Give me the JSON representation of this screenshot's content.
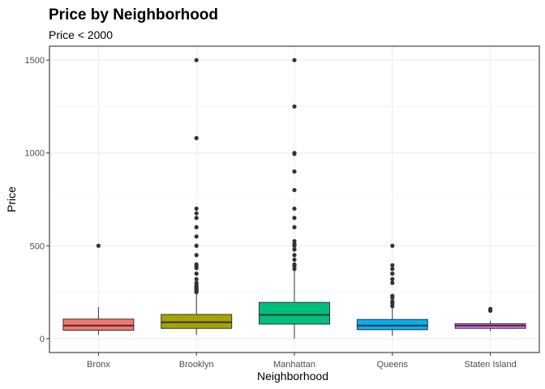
{
  "chart_data": {
    "type": "boxplot",
    "title": "Price by Neighborhood",
    "subtitle": "Price < 2000",
    "xlabel": "Neighborhood",
    "ylabel": "Price",
    "ylim": [
      -75,
      1575
    ],
    "yticks": [
      0,
      500,
      1000,
      1500
    ],
    "grid": true,
    "legend": "none",
    "categories": [
      "Bronx",
      "Brooklyn",
      "Manhattan",
      "Queens",
      "Staten Island"
    ],
    "boxes": [
      {
        "category": "Bronx",
        "color": "#F8766D",
        "whisker_low": 20,
        "q1": 45,
        "median": 70,
        "q3": 105,
        "whisker_high": 170,
        "outliers": [
          500
        ]
      },
      {
        "category": "Brooklyn",
        "color": "#A3A500",
        "whisker_low": 20,
        "q1": 55,
        "median": 88,
        "q3": 130,
        "whisker_high": 240,
        "outliers": [
          250,
          255,
          260,
          265,
          270,
          275,
          280,
          290,
          300,
          320,
          350,
          380,
          390,
          400,
          450,
          500,
          550,
          600,
          650,
          675,
          700,
          1080,
          1500
        ]
      },
      {
        "category": "Manhattan",
        "color": "#00BF7D",
        "whisker_low": 0,
        "q1": 78,
        "median": 128,
        "q3": 195,
        "whisker_high": 365,
        "outliers": [
          375,
          390,
          400,
          425,
          450,
          480,
          500,
          510,
          525,
          600,
          650,
          700,
          800,
          900,
          995,
          1000,
          1250,
          1500
        ]
      },
      {
        "category": "Queens",
        "color": "#00B0F6",
        "whisker_low": 15,
        "q1": 48,
        "median": 70,
        "q3": 103,
        "whisker_high": 165,
        "outliers": [
          175,
          190,
          200,
          220,
          230,
          300,
          320,
          350,
          375,
          395,
          500
        ]
      },
      {
        "category": "Staten Island",
        "color": "#E76BF3",
        "whisker_low": 40,
        "q1": 55,
        "median": 70,
        "q3": 80,
        "whisker_high": 95,
        "outliers": [
          150,
          160
        ]
      }
    ]
  }
}
